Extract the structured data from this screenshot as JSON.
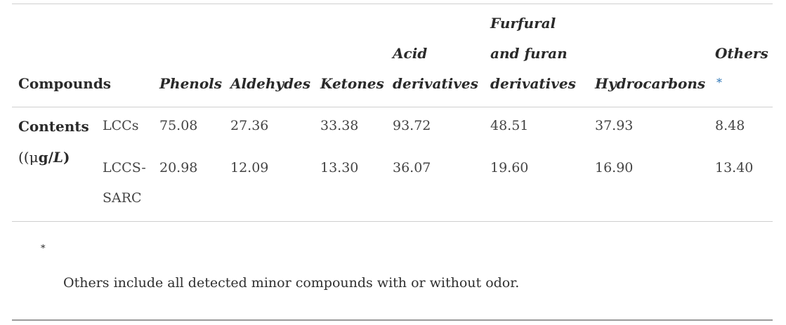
{
  "table": {
    "header": {
      "compounds": "Compounds",
      "phenols": "Phenols",
      "aldehydes": "Aldehydes",
      "ketones": "Ketones",
      "acid_line1": "Acid",
      "acid_line2": "derivatives",
      "furfural_line1": "Furfural",
      "furfural_line2": "and furan",
      "furfural_line3": "derivatives",
      "hydrocarbons": "Hydrocarbons",
      "others": "Others",
      "others_mark": "*"
    },
    "row_group": {
      "label_line1": "Contents",
      "label_line2_open": "((",
      "label_line2_mu": "μ",
      "label_line2_g": "g/",
      "label_line2_L": "L",
      "label_line2_close": ")"
    },
    "rows": [
      {
        "sample": "LCCs",
        "values": [
          "75.08",
          "27.36",
          "33.38",
          "93.72",
          "48.51",
          "37.93",
          "8.48"
        ]
      },
      {
        "sample_line1": "LCCS-",
        "sample_line2": "SARC",
        "values": [
          "20.98",
          "12.09",
          "13.30",
          "36.07",
          "19.60",
          "16.90",
          "13.40"
        ]
      }
    ]
  },
  "footnote": {
    "mark": "*",
    "text": "Others include all detected minor compounds with or without odor."
  }
}
